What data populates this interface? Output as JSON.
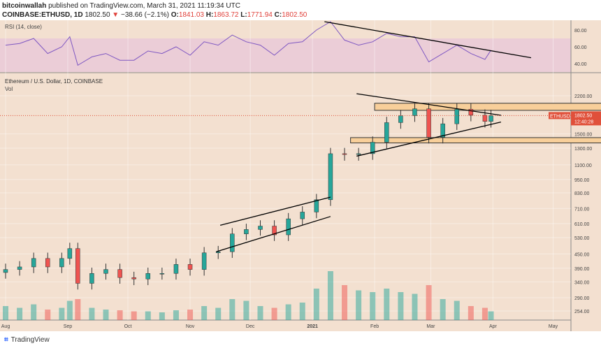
{
  "header": {
    "author": "bitcoinwallah",
    "published": "published on TradingView.com, March 31, 2021 11:19:34 UTC",
    "symbol": "COINBASE:ETHUSD, 1D",
    "last": "1802.50",
    "change": "−38.66 (−2.1%)",
    "o_label": "O:",
    "o": "1841.03",
    "h_label": "H:",
    "h": "1863.72",
    "l_label": "L:",
    "l": "1771.94",
    "c_label": "C:",
    "c": "1802.50"
  },
  "footer": {
    "brand": "TradingView"
  },
  "chart_data": {
    "type": "candlestick",
    "title": "Ethereum / U.S. Dollar, 1D, COINBASE",
    "volume_label": "Vol",
    "rsi_label": "RSI (14, close)",
    "y_scale": "log",
    "currency": "USD",
    "y_ticks": [
      "2200.00",
      "1500.00",
      "1300.00",
      "1100.00",
      "950.00",
      "830.00",
      "710.00",
      "610.00",
      "530.00",
      "450.00",
      "390.00",
      "340.00",
      "290.00",
      "254.00"
    ],
    "rsi_ticks": [
      "80.00",
      "60.00",
      "40.00"
    ],
    "x_ticks": [
      {
        "label": "Aug",
        "date": "2020-08-01"
      },
      {
        "label": "Sep",
        "date": "2020-09-01"
      },
      {
        "label": "Oct",
        "date": "2020-10-01"
      },
      {
        "label": "Nov",
        "date": "2020-11-01"
      },
      {
        "label": "Dec",
        "date": "2020-12-01"
      },
      {
        "label": "2021",
        "date": "2021-01-01"
      },
      {
        "label": "Feb",
        "date": "2021-02-01"
      },
      {
        "label": "Mar",
        "date": "2021-03-01"
      },
      {
        "label": "Apr",
        "date": "2021-04-01"
      },
      {
        "label": "May",
        "date": "2021-05-01"
      }
    ],
    "price_tag": {
      "symbol": "ETHUSD",
      "price": "1802.50",
      "countdown": "12:40:28"
    },
    "colors": {
      "up": "#26a69a",
      "down": "#ef5350",
      "rsi": "#7e57c2",
      "background": "#f3e0d0",
      "tag": "#e0503a",
      "zone": "#f8cf9a"
    },
    "series": [
      {
        "date": "2020-08-01",
        "close": 385,
        "vol": 40,
        "rsi": 62
      },
      {
        "date": "2020-08-08",
        "close": 395,
        "vol": 35,
        "rsi": 64
      },
      {
        "date": "2020-08-15",
        "close": 430,
        "vol": 45,
        "rsi": 70
      },
      {
        "date": "2020-08-22",
        "close": 395,
        "vol": 30,
        "rsi": 52
      },
      {
        "date": "2020-08-29",
        "close": 430,
        "vol": 35,
        "rsi": 60
      },
      {
        "date": "2020-09-02",
        "close": 475,
        "vol": 55,
        "rsi": 72
      },
      {
        "date": "2020-09-06",
        "close": 335,
        "vol": 60,
        "rsi": 38
      },
      {
        "date": "2020-09-13",
        "close": 370,
        "vol": 35,
        "rsi": 48
      },
      {
        "date": "2020-09-20",
        "close": 385,
        "vol": 30,
        "rsi": 52
      },
      {
        "date": "2020-09-27",
        "close": 355,
        "vol": 28,
        "rsi": 44
      },
      {
        "date": "2020-10-04",
        "close": 350,
        "vol": 25,
        "rsi": 44
      },
      {
        "date": "2020-10-11",
        "close": 370,
        "vol": 25,
        "rsi": 55
      },
      {
        "date": "2020-10-18",
        "close": 370,
        "vol": 22,
        "rsi": 52
      },
      {
        "date": "2020-10-25",
        "close": 405,
        "vol": 28,
        "rsi": 60
      },
      {
        "date": "2020-11-01",
        "close": 385,
        "vol": 30,
        "rsi": 50
      },
      {
        "date": "2020-11-08",
        "close": 455,
        "vol": 40,
        "rsi": 66
      },
      {
        "date": "2020-11-15",
        "close": 460,
        "vol": 35,
        "rsi": 62
      },
      {
        "date": "2020-11-22",
        "close": 550,
        "vol": 60,
        "rsi": 74
      },
      {
        "date": "2020-11-29",
        "close": 575,
        "vol": 55,
        "rsi": 66
      },
      {
        "date": "2020-12-06",
        "close": 595,
        "vol": 40,
        "rsi": 62
      },
      {
        "date": "2020-12-13",
        "close": 545,
        "vol": 35,
        "rsi": 50
      },
      {
        "date": "2020-12-20",
        "close": 640,
        "vol": 45,
        "rsi": 64
      },
      {
        "date": "2020-12-27",
        "close": 685,
        "vol": 50,
        "rsi": 66
      },
      {
        "date": "2021-01-03",
        "close": 775,
        "vol": 90,
        "rsi": 80
      },
      {
        "date": "2021-01-10",
        "close": 1230,
        "vol": 140,
        "rsi": 90
      },
      {
        "date": "2021-01-17",
        "close": 1220,
        "vol": 100,
        "rsi": 68
      },
      {
        "date": "2021-01-24",
        "close": 1230,
        "vol": 85,
        "rsi": 62
      },
      {
        "date": "2021-01-31",
        "close": 1380,
        "vol": 80,
        "rsi": 66
      },
      {
        "date": "2021-02-07",
        "close": 1680,
        "vol": 90,
        "rsi": 76
      },
      {
        "date": "2021-02-14",
        "close": 1800,
        "vol": 80,
        "rsi": 72
      },
      {
        "date": "2021-02-21",
        "close": 1930,
        "vol": 75,
        "rsi": 72
      },
      {
        "date": "2021-02-28",
        "close": 1450,
        "vol": 100,
        "rsi": 42
      },
      {
        "date": "2021-03-07",
        "close": 1660,
        "vol": 60,
        "rsi": 52
      },
      {
        "date": "2021-03-14",
        "close": 1920,
        "vol": 55,
        "rsi": 62
      },
      {
        "date": "2021-03-21",
        "close": 1810,
        "vol": 40,
        "rsi": 52
      },
      {
        "date": "2021-03-28",
        "close": 1700,
        "vol": 35,
        "rsi": 45
      },
      {
        "date": "2021-03-31",
        "close": 1802.5,
        "vol": 25,
        "rsi": 56
      }
    ],
    "zones": [
      {
        "from": "2021-02-01",
        "to": "2021-05-27",
        "low": 1900,
        "high": 2040
      },
      {
        "from": "2021-01-20",
        "to": "2021-05-27",
        "low": 1370,
        "high": 1445
      }
    ],
    "trendlines": [
      {
        "pane": "price",
        "from": [
          "2021-01-23",
          2245
        ],
        "to": [
          "2021-04-05",
          1808
        ]
      },
      {
        "pane": "price",
        "from": [
          "2021-01-23",
          1200
        ],
        "to": [
          "2021-04-05",
          1690
        ]
      },
      {
        "pane": "price",
        "from": [
          "2020-11-16",
          600
        ],
        "to": [
          "2021-01-10",
          795
        ]
      },
      {
        "pane": "price",
        "from": [
          "2020-11-14",
          460
        ],
        "to": [
          "2021-01-10",
          655
        ]
      },
      {
        "pane": "rsi",
        "from": [
          "2021-01-07",
          90
        ],
        "to": [
          "2021-04-20",
          47
        ]
      }
    ]
  }
}
